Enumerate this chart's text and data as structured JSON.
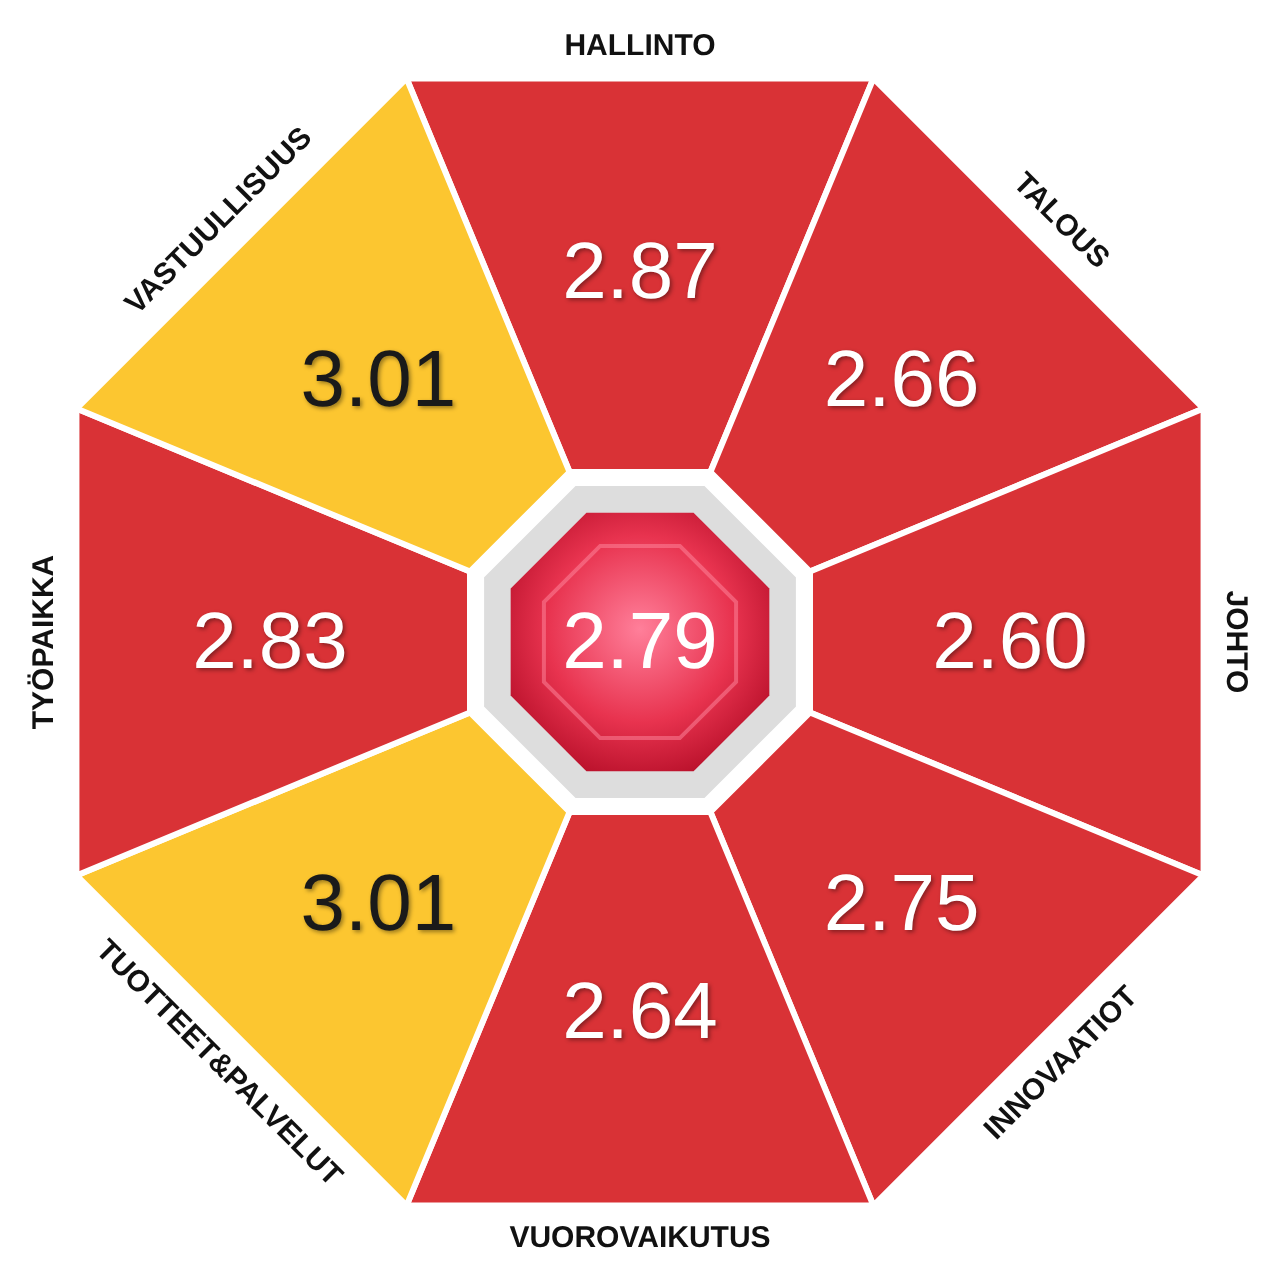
{
  "chart_data": {
    "type": "other",
    "categories": [
      "HALLINTO",
      "TALOUS",
      "JOHTO",
      "INNOVAATIOT",
      "VUOROVAIKUTUS",
      "TUOTTEET&PALVELUT",
      "TYÖPAIKKA",
      "VASTUULLISUUS"
    ],
    "values": [
      2.87,
      2.66,
      2.6,
      2.75,
      2.64,
      3.01,
      2.83,
      3.01
    ],
    "value_labels": [
      "2.87",
      "2.66",
      "2.60",
      "2.75",
      "2.64",
      "3.01",
      "2.83",
      "3.01"
    ],
    "colors": [
      "#d93236",
      "#d93236",
      "#d93236",
      "#d93236",
      "#d93236",
      "#fcc630",
      "#d93236",
      "#fcc630"
    ],
    "annotations": [
      "2.79"
    ]
  }
}
